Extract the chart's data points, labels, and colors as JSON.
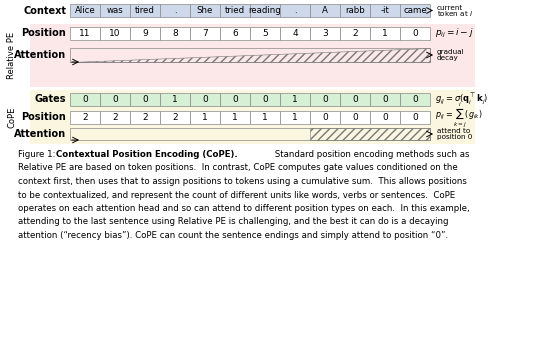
{
  "context_tokens": [
    "Alice",
    "was",
    "tired",
    ".",
    "She",
    "tried",
    "reading",
    ".",
    "A",
    "rabb",
    "-it",
    "came"
  ],
  "relative_pe_position": [
    11,
    10,
    9,
    8,
    7,
    6,
    5,
    4,
    3,
    2,
    1,
    0
  ],
  "cope_gates": [
    0,
    0,
    0,
    1,
    0,
    0,
    0,
    1,
    0,
    0,
    0,
    0
  ],
  "cope_position": [
    2,
    2,
    2,
    2,
    1,
    1,
    1,
    1,
    0,
    0,
    0,
    0
  ],
  "context_bg": "#cdd8eb",
  "relative_bg": "#fce8e8",
  "cope_bg": "#faf6e0",
  "gates_cell_bg": "#d6f0d6",
  "white_cell_bg": "#ffffff",
  "caption_lines": [
    [
      "Figure 1:  ",
      false,
      "Contextual Position Encoding (CoPE).",
      true,
      " Standard position encoding methods such as",
      false
    ],
    [
      "Relative PE are based on token positions.  In contrast, CoPE computes gate values conditioned on the",
      false
    ],
    [
      "context first, then uses that to assign positions to tokens using a cumulative sum.  This allows positions",
      false
    ],
    [
      "to be contextualized, and represent the count of different units like words, verbs or sentences.  CoPE",
      false
    ],
    [
      "operates on each attention head and so can attend to different position types on each.  In this example,",
      false
    ],
    [
      "attending to the last sentence using Relative PE is challenging, and the best it can do is a decaying",
      false
    ],
    [
      "attention (“recency bias”). CoPE can count the sentence endings and simply attend to position “0”.",
      false
    ]
  ]
}
